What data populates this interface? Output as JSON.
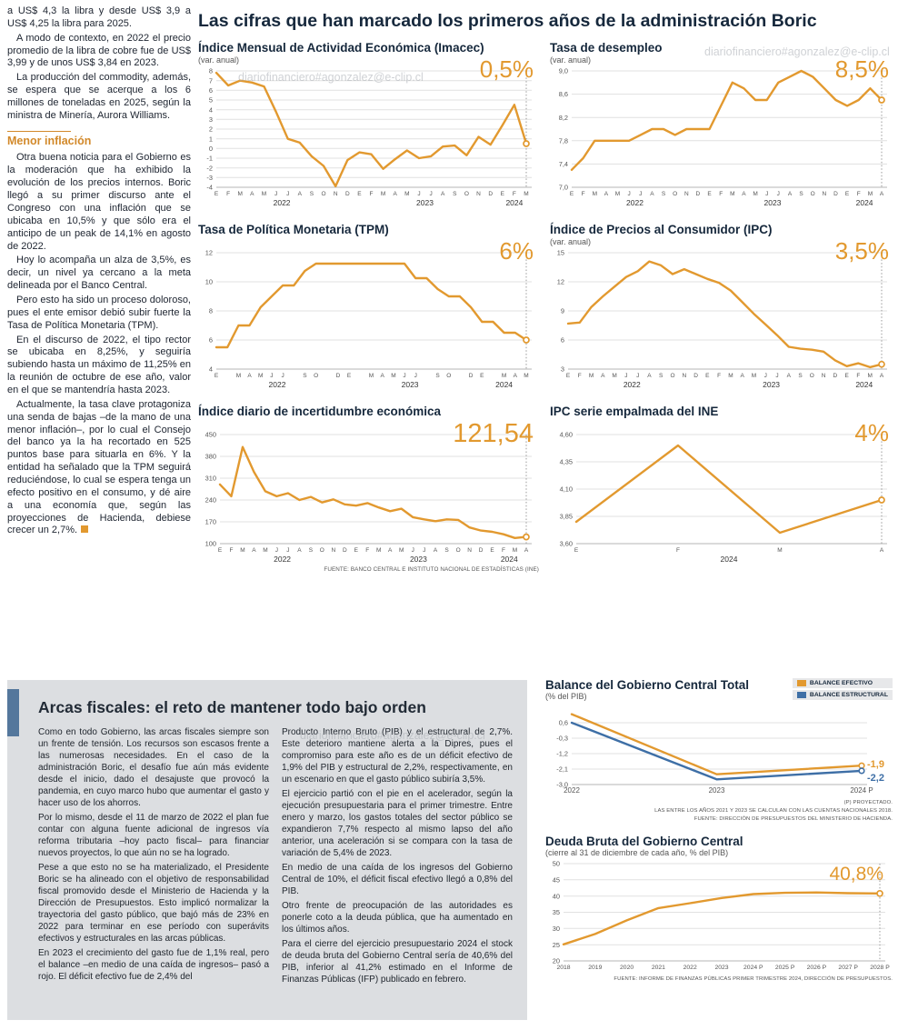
{
  "watermark": "diariofinanciero#agonzalez@e-clip.cl",
  "main_title": "Las cifras que han marcado los primeros años de la administración Boric",
  "colors": {
    "accent_orange": "#E2992F",
    "line_blue": "#3E6FA6",
    "title_navy": "#16283C",
    "panel_gray": "#DCDEE1",
    "accent_bar_blue": "#54779C"
  },
  "left_article": {
    "paragraphs": [
      "a US$ 4,3 la libra y desde US$ 3,9 a US$ 4,25 la libra para 2025.",
      "A modo de contexto, en 2022 el precio promedio de la libra de cobre fue de US$ 3,99 y de unos US$ 3,84 en 2023.",
      "La producción del commodity, además, se espera que se acerque a los 6 millones de toneladas en 2025, según la ministra de Minería, Aurora Williams."
    ],
    "heading": "Menor inflación",
    "paragraphs2": [
      "Otra buena noticia para el Gobierno es la moderación que ha exhibido la evolución de los precios internos. Boric llegó a su primer discurso ante el Congreso con una inflación que se ubicaba en 10,5% y que sólo era el anticipo de un peak de 14,1% en agosto de 2022.",
      "Hoy lo acompaña un alza de 3,5%, es decir, un nivel ya cercano a la meta delineada por el Banco Central.",
      "Pero esto ha sido un proceso doloroso, pues el ente emisor debió subir fuerte la Tasa de Política Monetaria (TPM).",
      "En el discurso de 2022, el tipo rector se ubicaba en 8,25%, y seguiría subiendo hasta un máximo de 11,25% en la reunión de octubre de ese año, valor en el que se mantendría hasta 2023.",
      "Actualmente, la tasa clave protagoniza una senda de bajas –de la mano de una menor inflación–, por lo cual el Consejo del banco ya la ha recortado en 525 puntos base para situarla en 6%. Y la entidad ha señalado que la TPM seguirá reduciéndose, lo cual se espera tenga un efecto positivo en el consumo, y dé aire a una economía que, según las proyecciones de Hacienda, debiese crecer un 2,7%."
    ]
  },
  "top_source": "FUENTE: BANCO CENTRAL E INSTITUTO NACIONAL DE ESTADÍSTICAS (INE)",
  "fiscal": {
    "title": "Arcas fiscales: el reto de mantener todo bajo orden",
    "col1": [
      "Como en todo Gobierno, las arcas fiscales siempre son un frente de tensión. Los recursos son escasos frente a las numerosas necesidades. En el caso de la administración Boric, el desafío fue aún más evidente desde el inicio, dado el desajuste que provocó la pandemia, en cuyo marco hubo que aumentar el gasto y hacer uso de los ahorros.",
      "Por lo mismo, desde el 11 de marzo de 2022 el plan fue contar con alguna fuente adicional de ingresos vía reforma tributaria –hoy pacto fiscal– para financiar nuevos proyectos, lo que aún no se ha logrado.",
      "Pese a que esto no se ha materializado, el Presidente Boric se ha alineado con el objetivo de responsabilidad fiscal promovido desde el Ministerio de Hacienda y la Dirección de Presupuestos. Esto implicó normalizar la trayectoria del gasto público, que bajó más de 23% en 2022 para terminar en ese período con superávits efectivos y estructurales en las arcas públicas.",
      "En 2023 el crecimiento del gasto fue de 1,1% real, pero el balance –en medio de una caída de ingresos– pasó a rojo. El déficit efectivo fue de 2,4% del"
    ],
    "col2": [
      "Producto Interno Bruto (PIB) y el estructural de 2,7%. Este deterioro mantiene alerta a la Dipres, pues el compromiso para este año es de un déficit efectivo de 1,9% del PIB y estructural de 2,2%, respectivamente, en un escenario en que el gasto público subiría 3,5%.",
      "El ejercicio partió con el pie en el acelerador, según la ejecución presupuestaria para el primer trimestre. Entre enero y marzo, los gastos totales del sector público se expandieron 7,7% respecto al mismo lapso del año anterior, una aceleración si se compara con la tasa de variación de 5,4% de 2023.",
      "En medio de una caída de los ingresos del Gobierno Central de 10%, el déficit fiscal efectivo llegó a 0,8% del PIB.",
      "Otro frente de preocupación de las autoridades es ponerle coto a la deuda pública, que ha aumentado en los últimos años.",
      "Para el cierre del ejercicio presupuestario 2024 el stock de deuda bruta del Gobierno Central sería de 40,6% del PIB, inferior al 41,2% estimado en el Informe de Finanzas Públicas (IFP) publicado en febrero."
    ]
  },
  "balance_notes": [
    "(P) PROYECTADO.",
    "LAS ENTRE LOS AÑOS 2021 Y 2023 SE CALCULAN CON LAS CUENTAS NACIONALES 2018.",
    "FUENTE: DIRECCIÓN DE PRESUPUESTOS DEL MINISTERIO DE HACIENDA."
  ],
  "deuda_source": "FUENTE: INFORME DE FINANZAS PÚBLICAS PRIMER TRIMESTRE 2024, DIRECCIÓN DE PRESUPUESTOS.",
  "chart_data": [
    {
      "type": "line",
      "title": "Índice Mensual de Actividad Económica (Imacec)",
      "subtitle": "(var. anual)",
      "big_value": "0,5%",
      "ylim": [
        -4,
        8
      ],
      "yticks": [
        8,
        7,
        6,
        5,
        4,
        3,
        2,
        1,
        0,
        -1,
        -2,
        -3,
        -4
      ],
      "ytick_labels": [
        "8",
        "7",
        "6",
        "5",
        "4",
        "3",
        "2",
        "1",
        "0",
        "-1",
        "-2",
        "-3",
        "-4"
      ],
      "x_labels": [
        "E",
        "F",
        "M",
        "A",
        "M",
        "J",
        "J",
        "A",
        "S",
        "O",
        "N",
        "D",
        "E",
        "F",
        "M",
        "A",
        "M",
        "J",
        "J",
        "A",
        "S",
        "O",
        "N",
        "D",
        "E",
        "F",
        "M"
      ],
      "years": [
        {
          "label": "2022",
          "from": 0,
          "to": 11
        },
        {
          "label": "2023",
          "from": 12,
          "to": 23
        },
        {
          "label": "2024",
          "from": 24,
          "to": 26
        }
      ],
      "values": [
        7.8,
        6.5,
        7.0,
        6.8,
        6.4,
        3.8,
        1.0,
        0.6,
        -0.8,
        -1.8,
        -3.9,
        -1.2,
        -0.4,
        -0.6,
        -2.1,
        -1.1,
        -0.2,
        -1.0,
        -0.8,
        0.2,
        0.3,
        -0.7,
        1.2,
        0.4,
        2.4,
        4.5,
        0.5
      ],
      "end_marker": true
    },
    {
      "type": "line",
      "title": "Tasa de desempleo",
      "subtitle": "(var. anual)",
      "big_value": "8,5%",
      "ylim": [
        7.0,
        9.0
      ],
      "yticks": [
        9.0,
        8.6,
        8.2,
        7.8,
        7.4,
        7.0
      ],
      "ytick_labels": [
        "9,0",
        "8,6",
        "8,2",
        "7,8",
        "7,4",
        "7,0"
      ],
      "x_labels": [
        "E",
        "F",
        "M",
        "A",
        "M",
        "J",
        "J",
        "A",
        "S",
        "O",
        "N",
        "D",
        "E",
        "F",
        "M",
        "A",
        "M",
        "J",
        "J",
        "A",
        "S",
        "O",
        "N",
        "D",
        "E",
        "F",
        "M",
        "A"
      ],
      "years": [
        {
          "label": "2022",
          "from": 0,
          "to": 11
        },
        {
          "label": "2023",
          "from": 12,
          "to": 23
        },
        {
          "label": "2024",
          "from": 24,
          "to": 27
        }
      ],
      "values": [
        7.3,
        7.5,
        7.8,
        7.8,
        7.8,
        7.8,
        7.9,
        8.0,
        8.0,
        7.9,
        8.0,
        8.0,
        8.0,
        8.4,
        8.8,
        8.7,
        8.5,
        8.5,
        8.8,
        8.9,
        9.0,
        8.9,
        8.7,
        8.5,
        8.4,
        8.5,
        8.7,
        8.5
      ],
      "end_marker": true
    },
    {
      "type": "line",
      "title": "Tasa de Política Monetaria (TPM)",
      "subtitle": "",
      "big_value": "6%",
      "ylim": [
        4,
        12
      ],
      "yticks": [
        12,
        10,
        8,
        6,
        4
      ],
      "ytick_labels": [
        "12",
        "10",
        "8",
        "6",
        "4"
      ],
      "x_labels": [
        "E",
        "",
        "M",
        "A",
        "M",
        "J",
        "J",
        "",
        "S",
        "O",
        "",
        "D",
        "E",
        "",
        "M",
        "A",
        "M",
        "J",
        "J",
        "",
        "S",
        "O",
        "",
        "D",
        "E",
        "",
        "M",
        "A",
        "M"
      ],
      "years": [
        {
          "label": "2022",
          "from": 0,
          "to": 11
        },
        {
          "label": "2023",
          "from": 12,
          "to": 23
        },
        {
          "label": "2024",
          "from": 24,
          "to": 28
        }
      ],
      "values": [
        5.5,
        5.5,
        7.0,
        7.0,
        8.25,
        9.0,
        9.75,
        9.75,
        10.75,
        11.25,
        11.25,
        11.25,
        11.25,
        11.25,
        11.25,
        11.25,
        11.25,
        11.25,
        10.25,
        10.25,
        9.5,
        9.0,
        9.0,
        8.25,
        7.25,
        7.25,
        6.5,
        6.5,
        6.0
      ],
      "end_marker": true
    },
    {
      "type": "line",
      "title": "Índice de Precios al Consumidor (IPC)",
      "subtitle": "(var. anual)",
      "big_value": "3,5%",
      "ylim": [
        3,
        15
      ],
      "yticks": [
        15,
        12,
        9,
        6,
        3
      ],
      "ytick_labels": [
        "15",
        "12",
        "9",
        "6",
        "3"
      ],
      "x_labels": [
        "E",
        "F",
        "M",
        "A",
        "M",
        "J",
        "J",
        "A",
        "S",
        "O",
        "N",
        "D",
        "E",
        "F",
        "M",
        "A",
        "M",
        "J",
        "J",
        "A",
        "S",
        "O",
        "N",
        "D",
        "E",
        "F",
        "M",
        "A"
      ],
      "years": [
        {
          "label": "2022",
          "from": 0,
          "to": 11
        },
        {
          "label": "2023",
          "from": 12,
          "to": 23
        },
        {
          "label": "2024",
          "from": 24,
          "to": 27
        }
      ],
      "values": [
        7.7,
        7.8,
        9.4,
        10.5,
        11.5,
        12.5,
        13.1,
        14.1,
        13.7,
        12.8,
        13.3,
        12.8,
        12.3,
        11.9,
        11.1,
        9.9,
        8.7,
        7.6,
        6.5,
        5.3,
        5.1,
        5.0,
        4.8,
        3.9,
        3.3,
        3.6,
        3.2,
        3.5
      ],
      "end_marker": true
    },
    {
      "type": "line",
      "title": "Índice diario de incertidumbre económica",
      "subtitle": "",
      "big_value": "121,54",
      "ylim": [
        100,
        450
      ],
      "yticks": [
        450,
        380,
        310,
        240,
        170,
        100
      ],
      "ytick_labels": [
        "450",
        "380",
        "310",
        "240",
        "170",
        "100"
      ],
      "x_labels": [
        "E",
        "F",
        "M",
        "A",
        "M",
        "J",
        "J",
        "A",
        "S",
        "O",
        "N",
        "D",
        "E",
        "F",
        "M",
        "A",
        "M",
        "J",
        "J",
        "A",
        "S",
        "O",
        "N",
        "D",
        "E",
        "F",
        "M",
        "A"
      ],
      "years": [
        {
          "label": "2022",
          "from": 0,
          "to": 11
        },
        {
          "label": "2023",
          "from": 12,
          "to": 23
        },
        {
          "label": "2024",
          "from": 24,
          "to": 27
        }
      ],
      "values": [
        290,
        252,
        410,
        330,
        268,
        252,
        262,
        240,
        250,
        232,
        242,
        226,
        222,
        230,
        216,
        204,
        212,
        185,
        178,
        172,
        178,
        176,
        152,
        142,
        138,
        130,
        118,
        121.54
      ],
      "end_marker": true
    },
    {
      "type": "line",
      "title": "IPC serie empalmada del INE",
      "subtitle": "",
      "big_value": "4%",
      "ylim": [
        3.6,
        4.6
      ],
      "yticks": [
        4.6,
        4.35,
        4.1,
        3.85,
        3.6
      ],
      "ytick_labels": [
        "4,60",
        "4,35",
        "4,10",
        "3,85",
        "3,60"
      ],
      "x_labels": [
        "E",
        "F",
        "M",
        "A"
      ],
      "years": [
        {
          "label": "2024",
          "from": 0,
          "to": 3
        }
      ],
      "values": [
        3.8,
        4.5,
        3.7,
        4.0
      ],
      "end_marker": true
    },
    {
      "type": "line",
      "title": "Balance del Gobierno Central Total",
      "subtitle": "(% del PIB)",
      "legend": [
        {
          "label": "BALANCE EFECTIVO",
          "color": "#E2992F"
        },
        {
          "label": "BALANCE ESTRUCTURAL",
          "color": "#3E6FA6"
        }
      ],
      "ylim": [
        -3.0,
        1.5
      ],
      "yticks": [
        0.6,
        -0.3,
        -1.2,
        -2.1,
        -3.0
      ],
      "ytick_labels": [
        "0,6",
        "-0,3",
        "-1,2",
        "-2,1",
        "-3,0"
      ],
      "x_labels": [
        "2022",
        "2023",
        "2024 P"
      ],
      "x_label_size": 8,
      "series": [
        {
          "name": "BALANCE EFECTIVO",
          "color": "#E2992F",
          "values": [
            1.1,
            -2.4,
            -1.9
          ],
          "end_label": "-1,9",
          "label_dy": -1
        },
        {
          "name": "BALANCE ESTRUCTURAL",
          "color": "#3E6FA6",
          "values": [
            0.6,
            -2.7,
            -2.2
          ],
          "end_label": "-2,2",
          "label_dy": 8
        }
      ]
    },
    {
      "type": "line",
      "title": "Deuda Bruta del Gobierno Central",
      "subtitle": "(cierre al 31 de diciembre de cada año, % del PIB)",
      "big_value": "40,8%",
      "ylim": [
        20,
        50
      ],
      "yticks": [
        50,
        45,
        40,
        35,
        30,
        25,
        20
      ],
      "ytick_labels": [
        "50",
        "45",
        "40",
        "35",
        "30",
        "25",
        "20"
      ],
      "x_labels": [
        "2018",
        "2019",
        "2020",
        "2021",
        "2022",
        "2023",
        "2024 P",
        "2025 P",
        "2026 P",
        "2027 P",
        "2028 P"
      ],
      "x_label_size": 6.8,
      "values": [
        25.1,
        28.3,
        32.5,
        36.3,
        37.8,
        39.4,
        40.6,
        41.0,
        41.1,
        40.9,
        40.8
      ],
      "end_marker": true
    }
  ]
}
